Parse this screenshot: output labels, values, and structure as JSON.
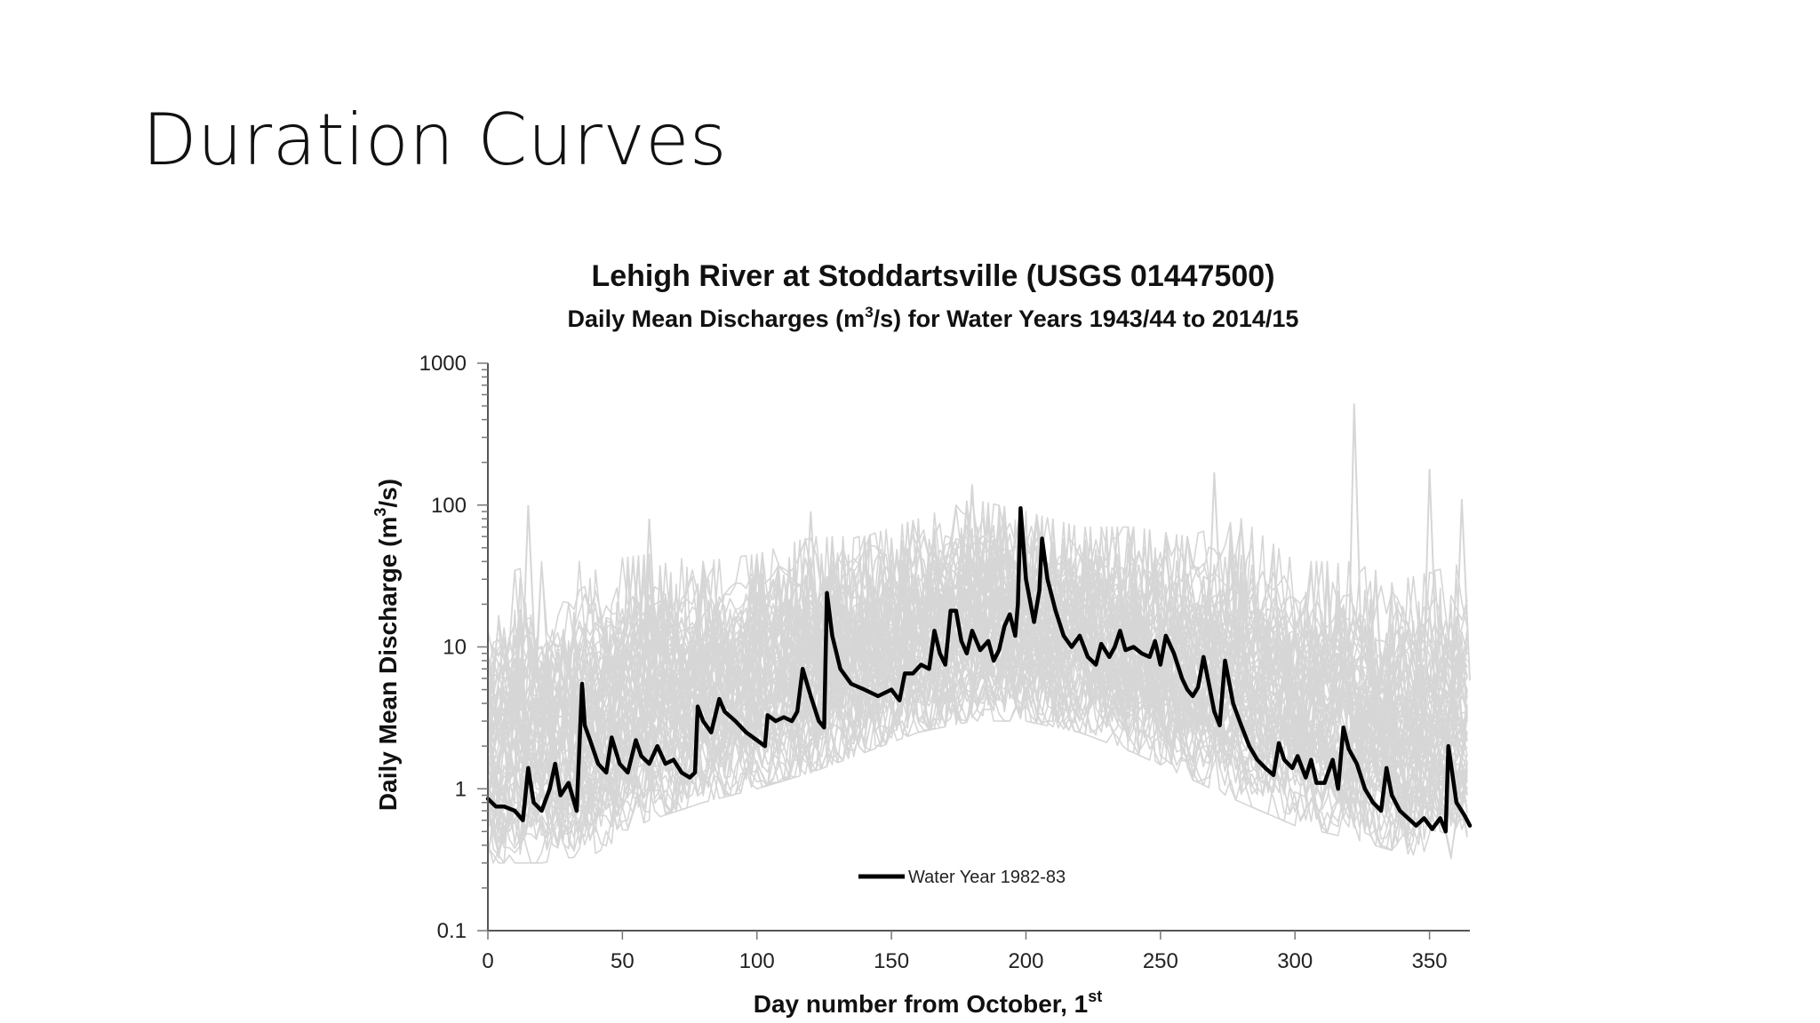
{
  "slide": {
    "title": "Duration Curves"
  },
  "chart_data": {
    "type": "line",
    "title": "Lehigh River at Stoddartsville (USGS 01447500)",
    "subtitle_parts": [
      "Daily Mean Discharges (m",
      "3",
      "/s) for Water Years 1943/44 to 2014/15"
    ],
    "xlabel_parts": [
      "Day number from October, 1",
      "st"
    ],
    "ylabel_parts": [
      "Daily Mean Discharge (m",
      "3",
      "/s)"
    ],
    "x_scale": "linear",
    "y_scale": "log",
    "xlim": [
      0,
      365
    ],
    "ylim": [
      0.1,
      1000
    ],
    "x_ticks": [
      0,
      50,
      100,
      150,
      200,
      250,
      300,
      350
    ],
    "y_ticks": [
      0.1,
      1,
      10,
      100,
      1000
    ],
    "y_tick_labels": [
      "0.1",
      "1",
      "10",
      "100",
      "1000"
    ],
    "grid": false,
    "legend": {
      "placement": "bottom-center",
      "entries": [
        "Water Year 1982-83"
      ]
    },
    "colors": {
      "highlight": "#000000",
      "background_series": "#d6d6d6"
    },
    "background_series_count": 72,
    "background_envelope": {
      "x": [
        0,
        20,
        40,
        60,
        80,
        100,
        120,
        140,
        160,
        180,
        200,
        220,
        240,
        260,
        280,
        300,
        320,
        340,
        365
      ],
      "upper": [
        30,
        40,
        40,
        45,
        40,
        45,
        60,
        60,
        80,
        110,
        90,
        70,
        70,
        60,
        80,
        40,
        40,
        30,
        40
      ],
      "lower": [
        0.3,
        0.3,
        0.35,
        0.6,
        0.8,
        1.0,
        1.3,
        1.8,
        2.5,
        3,
        3,
        2.5,
        1.8,
        1.2,
        0.8,
        0.55,
        0.45,
        0.35,
        0.3
      ],
      "peaks": [
        [
          15,
          100
        ],
        [
          60,
          80
        ],
        [
          120,
          90
        ],
        [
          180,
          140
        ],
        [
          270,
          170
        ],
        [
          322,
          520
        ],
        [
          350,
          180
        ],
        [
          362,
          110
        ]
      ]
    },
    "series": [
      {
        "name": "Water Year 1982-83",
        "x": [
          0,
          3,
          6,
          10,
          13,
          15,
          17,
          20,
          23,
          25,
          27,
          30,
          33,
          35,
          36,
          38,
          41,
          44,
          46,
          49,
          52,
          55,
          57,
          60,
          63,
          66,
          69,
          72,
          75,
          77,
          78,
          80,
          83,
          86,
          88,
          92,
          96,
          100,
          103,
          104,
          107,
          110,
          113,
          115,
          117,
          120,
          123,
          125,
          126,
          128,
          131,
          135,
          140,
          145,
          150,
          153,
          155,
          158,
          161,
          164,
          166,
          168,
          170,
          172,
          174,
          176,
          178,
          180,
          183,
          186,
          188,
          190,
          192,
          194,
          196,
          197,
          198,
          200,
          203,
          205,
          206,
          208,
          211,
          214,
          217,
          220,
          223,
          226,
          228,
          231,
          233,
          235,
          237,
          240,
          243,
          246,
          248,
          250,
          252,
          255,
          258,
          260,
          262,
          264,
          266,
          268,
          270,
          272,
          274,
          277,
          280,
          283,
          286,
          289,
          292,
          294,
          296,
          299,
          301,
          304,
          306,
          308,
          311,
          314,
          316,
          318,
          320,
          323,
          326,
          329,
          332,
          334,
          336,
          339,
          342,
          345,
          348,
          351,
          354,
          356,
          357,
          360,
          363,
          365
        ],
        "y": [
          0.85,
          0.75,
          0.75,
          0.7,
          0.6,
          1.4,
          0.8,
          0.7,
          1.0,
          1.5,
          0.9,
          1.1,
          0.7,
          5.5,
          2.8,
          2.2,
          1.5,
          1.3,
          2.3,
          1.5,
          1.3,
          2.2,
          1.7,
          1.5,
          2.0,
          1.5,
          1.6,
          1.3,
          1.2,
          1.3,
          3.8,
          3.0,
          2.5,
          4.3,
          3.5,
          3.0,
          2.5,
          2.2,
          2.0,
          3.3,
          3.0,
          3.2,
          3.0,
          3.5,
          7.0,
          4.5,
          3.0,
          2.7,
          24,
          12,
          7,
          5.5,
          5,
          4.5,
          5.0,
          4.2,
          6.5,
          6.5,
          7.5,
          7,
          13,
          9,
          7.5,
          18,
          18,
          11,
          9,
          13,
          9.5,
          11,
          8,
          9.5,
          14,
          17,
          12,
          20,
          95,
          30,
          15,
          25,
          58,
          30,
          18,
          12,
          10,
          12,
          8.5,
          7.5,
          10.5,
          8.5,
          10,
          13,
          9.5,
          10,
          9,
          8.5,
          11,
          7.5,
          12,
          9,
          6,
          5,
          4.5,
          5.2,
          8.5,
          5.5,
          3.5,
          2.8,
          8,
          4,
          2.8,
          2.0,
          1.6,
          1.4,
          1.25,
          2.1,
          1.6,
          1.4,
          1.7,
          1.2,
          1.6,
          1.1,
          1.1,
          1.6,
          1.0,
          2.7,
          1.9,
          1.5,
          1.0,
          0.8,
          0.7,
          1.4,
          0.9,
          0.7,
          0.62,
          0.55,
          0.62,
          0.52,
          0.62,
          0.5,
          2.0,
          0.8,
          0.65,
          0.55
        ]
      }
    ]
  }
}
